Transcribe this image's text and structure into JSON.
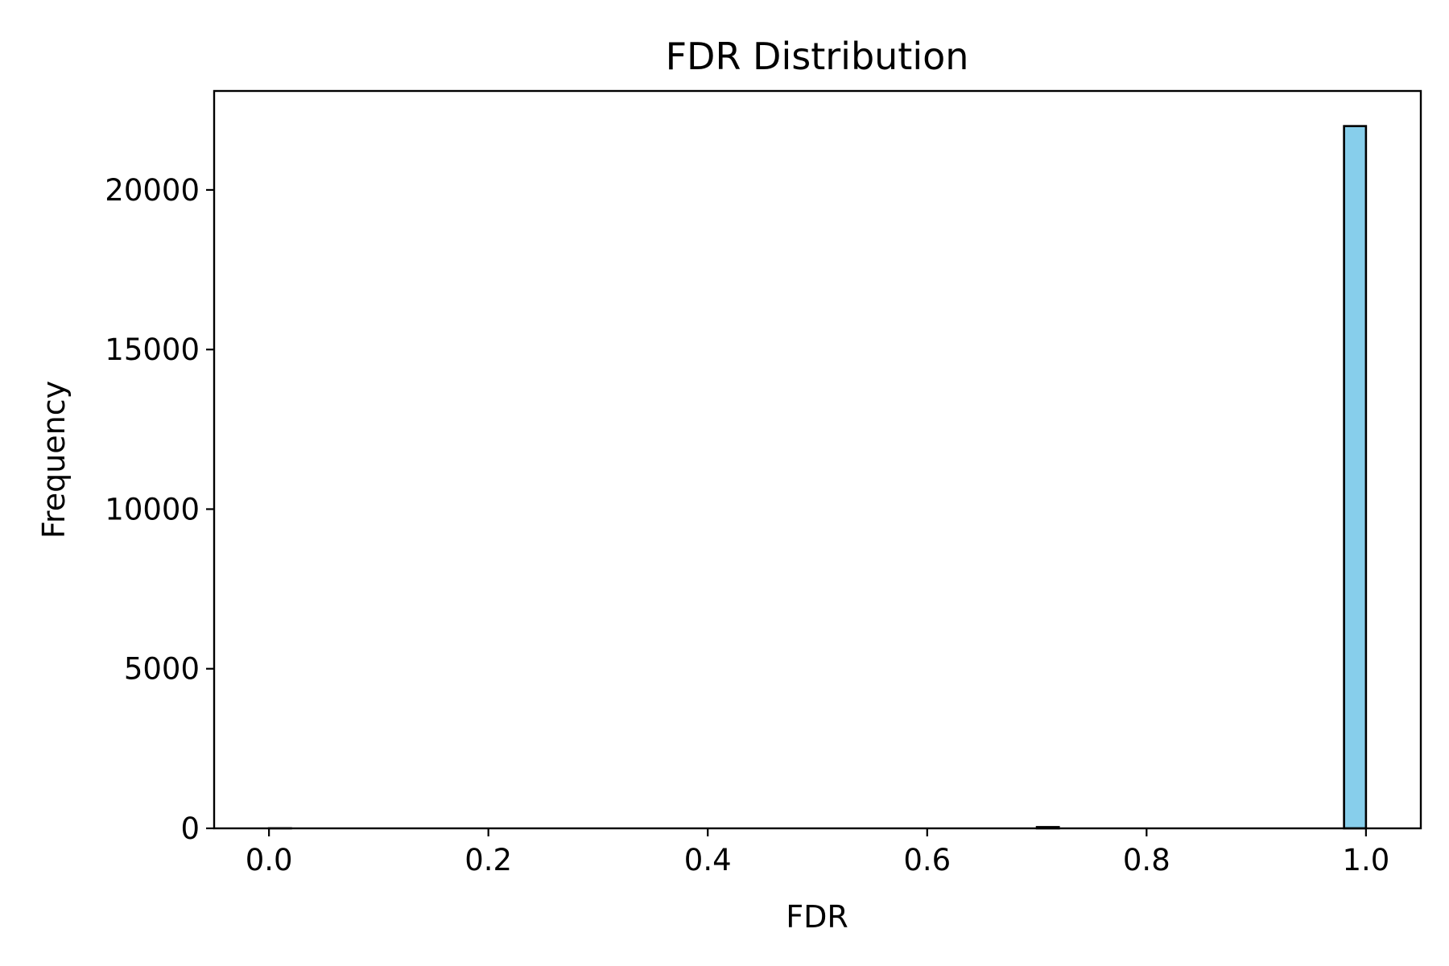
{
  "colors": {
    "bar_fill": "#87ceeb",
    "bar_edge": "#000000"
  },
  "chart_data": {
    "type": "bar",
    "title": "FDR Distribution",
    "xlabel": "FDR",
    "ylabel": "Frequency",
    "xlim": [
      -0.05,
      1.05
    ],
    "ylim": [
      0,
      23100
    ],
    "grid": false,
    "legend": "none",
    "x_ticks": [
      0.0,
      0.2,
      0.4,
      0.6,
      0.8,
      1.0
    ],
    "x_tick_labels": [
      "0.0",
      "0.2",
      "0.4",
      "0.6",
      "0.8",
      "1.0"
    ],
    "y_ticks": [
      0,
      5000,
      10000,
      15000,
      20000
    ],
    "y_tick_labels": [
      "0",
      "5000",
      "10000",
      "15000",
      "20000"
    ],
    "bins": [
      {
        "x_start": 0.0,
        "x_end": 0.02,
        "count": 2
      },
      {
        "x_start": 0.7,
        "x_end": 0.72,
        "count": 40
      },
      {
        "x_start": 0.98,
        "x_end": 1.0,
        "count": 22000
      }
    ]
  }
}
